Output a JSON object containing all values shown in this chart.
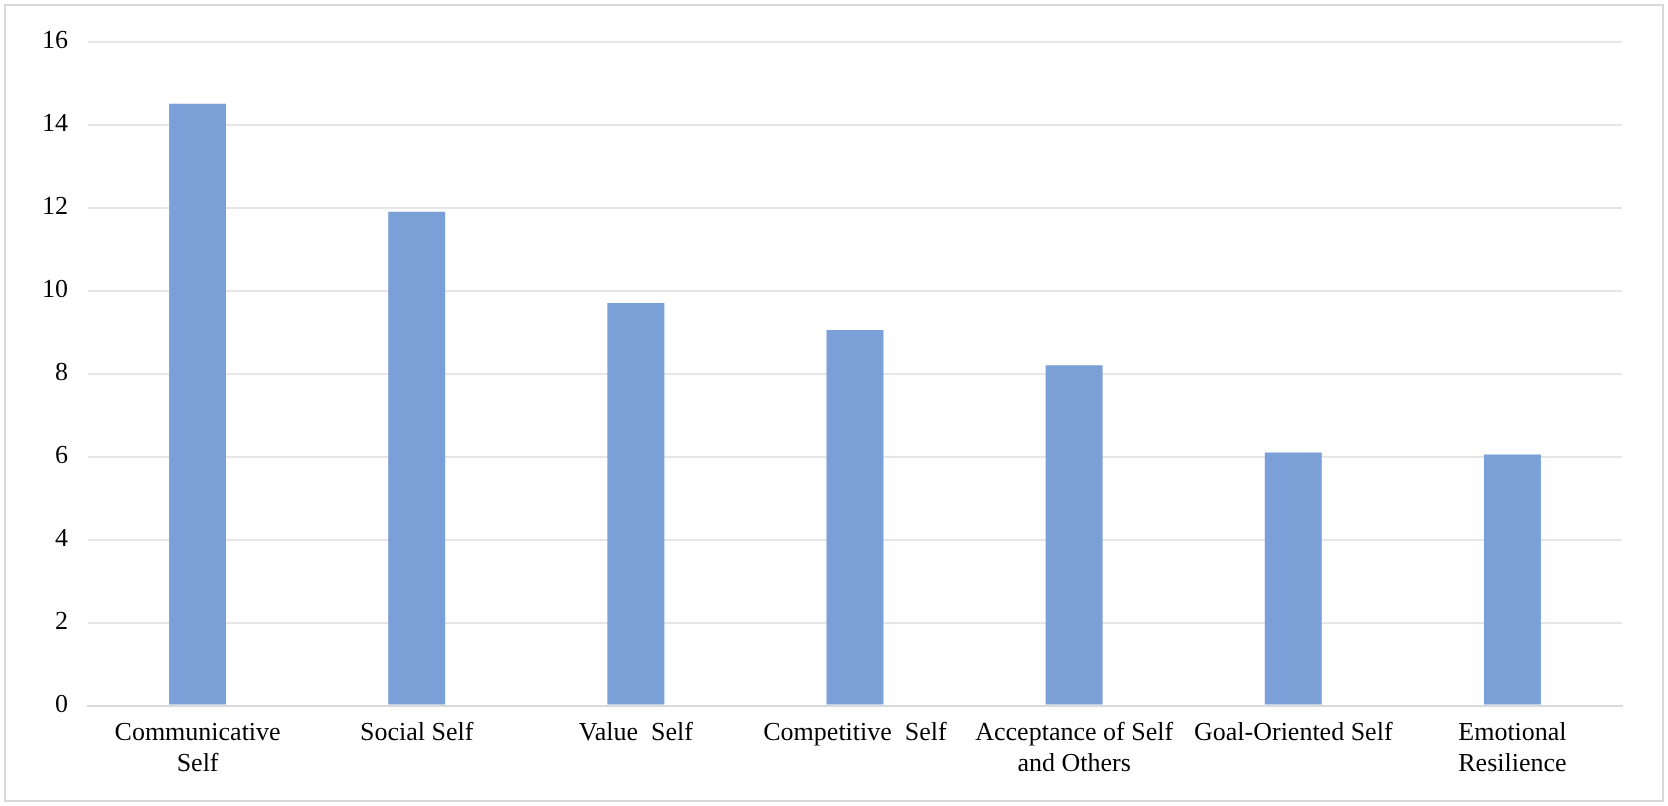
{
  "chart_data": {
    "type": "bar",
    "categories": [
      "Communicative Self",
      "Social Self",
      "Value  Self",
      "Competitive  Self",
      "Acceptance of Self and Others",
      "Goal-Oriented Self",
      "Emotional Resilience"
    ],
    "values": [
      14.5,
      11.9,
      9.7,
      9.05,
      8.2,
      6.1,
      6.05
    ],
    "color": "#7ba0d8",
    "ylim": [
      0,
      16
    ],
    "yticks": [
      0,
      2,
      4,
      6,
      8,
      10,
      12,
      14,
      16
    ],
    "grid": "y",
    "legend": false
  }
}
